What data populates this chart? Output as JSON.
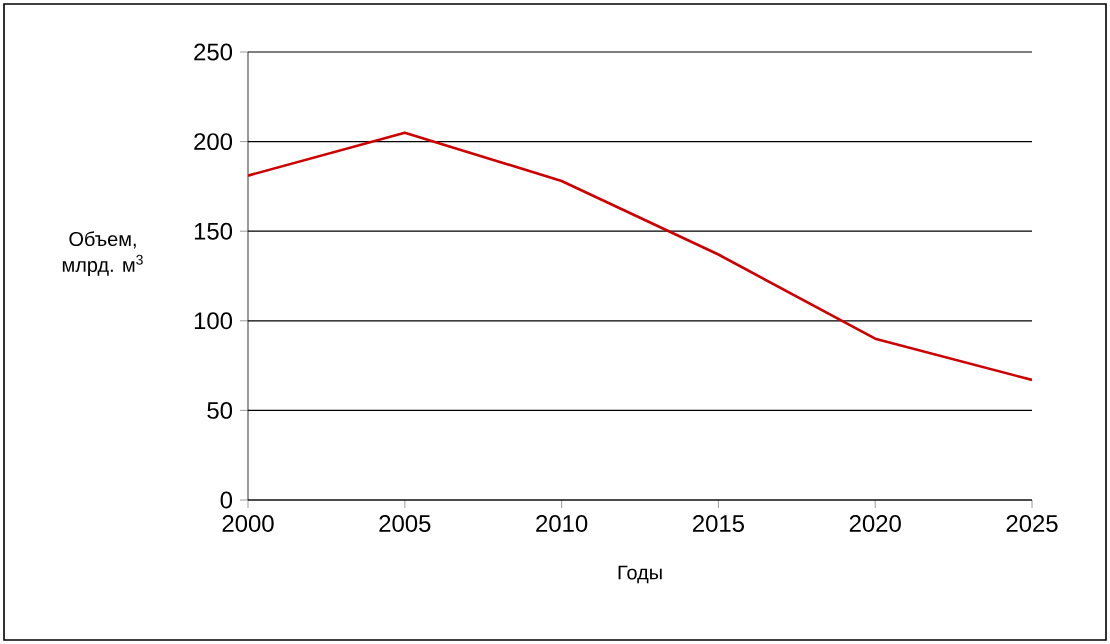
{
  "chart_data": {
    "type": "line",
    "xlabel": "Годы",
    "ylabel": "Объем,\nмлрд. м$^{3}$",
    "x": [
      2000,
      2005,
      2010,
      2015,
      2020,
      2025
    ],
    "series": [
      {
        "color": "#cc0000",
        "values": [
          181,
          205,
          178,
          137,
          90,
          67
        ]
      }
    ],
    "xlim": [
      2000,
      2025
    ],
    "xticks": [
      2000,
      2005,
      2010,
      2015,
      2020,
      2025
    ],
    "ylim": [
      0,
      250
    ],
    "yticks": [
      0,
      50,
      100,
      150,
      200,
      250
    ],
    "grid": "y",
    "marker": "none",
    "line_style": "solid"
  }
}
